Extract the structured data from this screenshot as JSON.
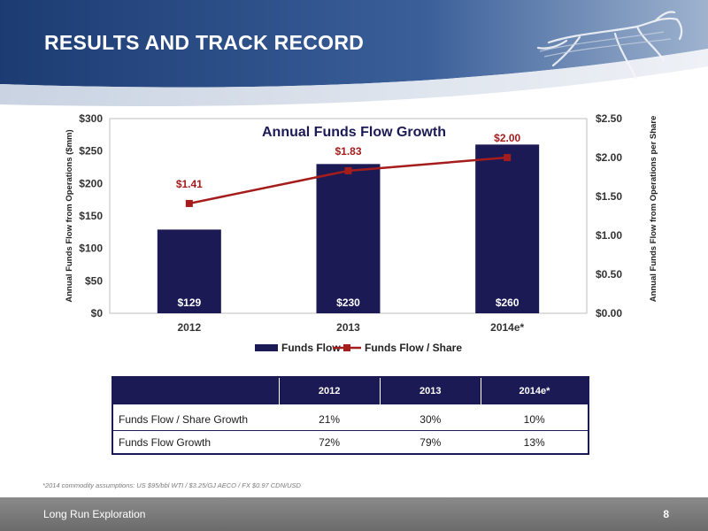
{
  "slide": {
    "title": "RESULTS AND TRACK RECORD",
    "footnote": "*2014 commodity assumptions:  US $95/bbl WTI / $3.25/GJ AECO / FX $0.97 CDN/USD",
    "footer_company": "Long Run Exploration",
    "page_number": "8"
  },
  "colors": {
    "navy": "#1b1a55",
    "line_red": "#a51c1c",
    "header_blue": "#1f3f7a",
    "footer_gray": "#7a7a7a"
  },
  "chart_data": {
    "type": "bar",
    "title": "Annual Funds Flow Growth",
    "categories": [
      "2012",
      "2013",
      "2014e*"
    ],
    "ylabel": "Annual Funds Flow from Operations ($mm)",
    "y2label": "Annual Funds Flow from Operations per Share",
    "ylim": [
      0,
      300
    ],
    "y2lim": [
      0,
      2.5
    ],
    "y_ticks": [
      "$0",
      "$50",
      "$100",
      "$150",
      "$200",
      "$250",
      "$300"
    ],
    "y2_ticks": [
      "$0.00",
      "$0.50",
      "$1.00",
      "$1.50",
      "$2.00",
      "$2.50"
    ],
    "grid": false,
    "legend_position": "bottom",
    "series": [
      {
        "name": "Funds Flow",
        "type": "bar",
        "axis": "left",
        "values": [
          129,
          230,
          260
        ],
        "labels": [
          "$129",
          "$230",
          "$260"
        ]
      },
      {
        "name": "Funds Flow / Share",
        "type": "line",
        "axis": "right",
        "values": [
          1.41,
          1.83,
          2.0
        ],
        "labels": [
          "$1.41",
          "$1.83",
          "$2.00"
        ]
      }
    ]
  },
  "table": {
    "headers": [
      "",
      "2012",
      "2013",
      "2014e*"
    ],
    "rows": [
      {
        "label": "Funds Flow / Share Growth",
        "values": [
          "21%",
          "30%",
          "10%"
        ]
      },
      {
        "label": "Funds Flow Growth",
        "values": [
          "72%",
          "79%",
          "13%"
        ]
      }
    ]
  }
}
